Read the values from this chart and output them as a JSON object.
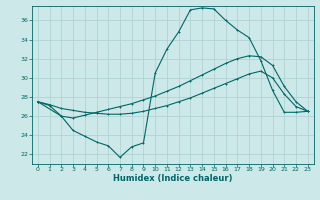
{
  "xlabel": "Humidex (Indice chaleur)",
  "bg_color": "#cce8e8",
  "grid_color": "#aacfcf",
  "line_color": "#006666",
  "xlim": [
    -0.5,
    23.5
  ],
  "ylim": [
    21.0,
    37.5
  ],
  "xticks": [
    0,
    1,
    2,
    3,
    4,
    5,
    6,
    7,
    8,
    9,
    10,
    11,
    12,
    13,
    14,
    15,
    16,
    17,
    18,
    19,
    20,
    21,
    22,
    23
  ],
  "yticks": [
    22,
    24,
    26,
    28,
    30,
    32,
    34,
    36
  ],
  "line1_x": [
    0,
    1,
    2,
    3,
    4,
    5,
    6,
    7,
    8,
    9,
    10,
    11,
    12,
    13,
    14,
    15,
    16,
    17,
    18,
    19,
    20,
    21,
    22,
    23
  ],
  "line1_y": [
    27.5,
    27.2,
    26.8,
    26.6,
    26.4,
    26.3,
    26.2,
    26.2,
    26.3,
    26.5,
    26.8,
    27.1,
    27.5,
    27.9,
    28.4,
    28.9,
    29.4,
    29.9,
    30.4,
    30.7,
    30.0,
    28.3,
    27.0,
    26.5
  ],
  "line2_x": [
    0,
    1,
    2,
    3,
    4,
    5,
    6,
    7,
    8,
    9,
    10,
    11,
    12,
    13,
    14,
    15,
    16,
    17,
    18,
    19,
    20,
    21,
    22,
    23
  ],
  "line2_y": [
    27.5,
    27.1,
    26.0,
    25.8,
    26.1,
    26.4,
    26.7,
    27.0,
    27.3,
    27.7,
    28.1,
    28.6,
    29.1,
    29.7,
    30.3,
    30.9,
    31.5,
    32.0,
    32.3,
    32.2,
    31.3,
    29.1,
    27.5,
    26.5
  ],
  "line3_x": [
    0,
    2,
    3,
    4,
    5,
    6,
    7,
    8,
    9,
    10,
    11,
    12,
    13,
    14,
    15,
    16,
    17,
    18,
    19,
    20,
    21,
    22,
    23
  ],
  "line3_y": [
    27.5,
    26.0,
    24.5,
    23.9,
    23.3,
    22.9,
    21.7,
    22.8,
    23.2,
    30.5,
    33.0,
    34.8,
    37.1,
    37.3,
    37.2,
    36.0,
    35.0,
    34.2,
    31.8,
    28.7,
    26.4,
    26.4,
    26.5
  ]
}
